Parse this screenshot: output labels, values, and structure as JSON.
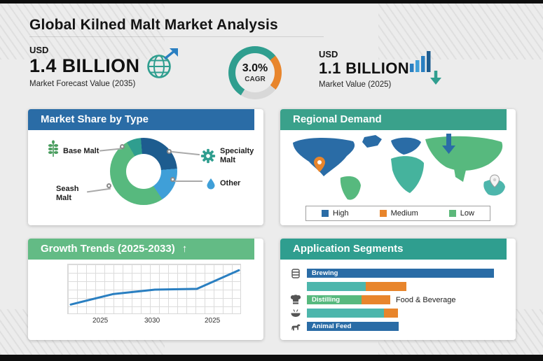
{
  "header": {
    "title": "Global Kilned Malt Market Analysis"
  },
  "colors": {
    "blue": "#2a6ca6",
    "light_blue": "#3f9fd8",
    "dark_blue": "#1d5c8f",
    "teal": "#2f9e8f",
    "green": "#5cb87a",
    "orange": "#e8852c",
    "header_blue": "#2a6ca6",
    "header_teal": "#3aa18b",
    "header_green": "#63bb85"
  },
  "icons": {
    "globe": "globe-with-up-arrow-icon",
    "gauge": "cagr-gauge",
    "bar_chart": "bar-chart-icon",
    "down_arrow": "down-arrow-icon",
    "wheat": "wheat-icon",
    "gear": "gear-icon",
    "droplet": "droplet-icon",
    "keg": "keg-icon",
    "chef_hat": "chef-hat-icon",
    "bowl": "bowl-icon",
    "dog": "dog-icon",
    "map_pin": "map-pin-icon",
    "map_arrow": "down-arrow-marker"
  },
  "stats": {
    "forecast": {
      "currency": "USD",
      "value": "1.4 BILLION",
      "label": "Market Forecast Value (2035)"
    },
    "cagr": {
      "value": "3.0%",
      "label": "CAGR"
    },
    "market": {
      "currency": "USD",
      "value": "1.1 BILLION",
      "label": "Market Value (2025)"
    }
  },
  "panels": {
    "market_share": {
      "title": "Market Share by Type",
      "labels": {
        "base": "Base Malt",
        "specialty": "Specialty Malt",
        "other": "Other",
        "seash": "Seash Malt"
      }
    },
    "regional": {
      "title": "Regional Demand",
      "legend": [
        {
          "label": "High",
          "color": "#2a6ca6"
        },
        {
          "label": "Medium",
          "color": "#e8852c"
        },
        {
          "label": "Low",
          "color": "#5cb87a"
        }
      ]
    },
    "growth": {
      "title": "Growth Trends (2025-2033)",
      "arrow": "↑",
      "x_labels": [
        "2025",
        "3030",
        "2025"
      ]
    },
    "applications": {
      "title": "Application Segments"
    }
  },
  "chart_data": [
    {
      "type": "pie",
      "title": "Market Share by Type",
      "labels": [
        "Base Malt",
        "Specialty Malt",
        "Other",
        "Seash Malt"
      ],
      "values": [
        7,
        25,
        17,
        51
      ],
      "colors": [
        "#2f9e8f",
        "#1d5c8f",
        "#3f9fd8",
        "#57b97e"
      ],
      "hole": 0.52,
      "legend_position": "around"
    },
    {
      "type": "line",
      "title": "Growth Trends (2025-2033)",
      "x": [
        0,
        1,
        2,
        3,
        4
      ],
      "y": [
        1.0,
        2.4,
        3.0,
        3.1,
        5.6
      ],
      "ylim": [
        0,
        6
      ],
      "x_tick_labels": [
        "2025",
        "3030",
        "2025"
      ],
      "color": "#2a7fc1",
      "grid": true
    },
    {
      "type": "bar",
      "title": "Application Segments",
      "orientation": "horizontal",
      "xlim": [
        0,
        100
      ],
      "rows": [
        {
          "label": "Brewing",
          "segments": [
            {
              "value": 92,
              "color": "#2a6ca6"
            }
          ]
        },
        {
          "label": "",
          "segments": [
            {
              "value": 29,
              "color": "#4db6ac"
            },
            {
              "value": 20,
              "color": "#e8852c"
            }
          ]
        },
        {
          "label": "Distilling",
          "segments": [
            {
              "value": 27,
              "color": "#57b97e"
            },
            {
              "value": 14,
              "color": "#e8852c"
            }
          ],
          "annotation": "Food & Beverage"
        },
        {
          "label": "",
          "segments": [
            {
              "value": 38,
              "color": "#4db6ac"
            },
            {
              "value": 7,
              "color": "#e8852c"
            }
          ]
        },
        {
          "label": "Animal Feed",
          "segments": [
            {
              "value": 45,
              "color": "#2a6ca6"
            }
          ]
        }
      ]
    }
  ]
}
